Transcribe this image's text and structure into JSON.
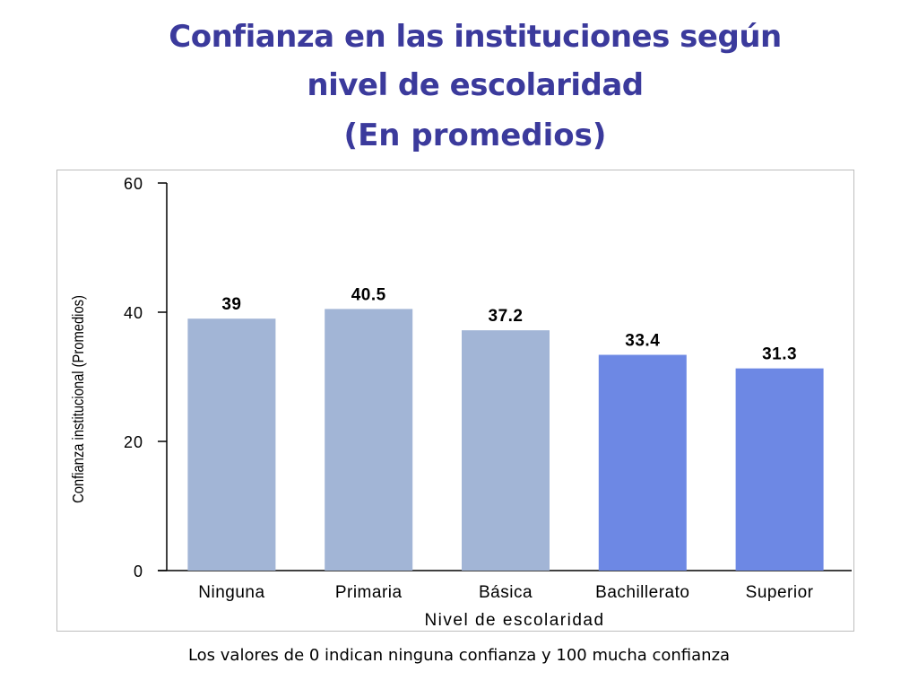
{
  "title": {
    "line1": "Confianza en las instituciones según",
    "line2": "nivel de escolaridad",
    "line3": "(En promedios)"
  },
  "footnote": "Los valores de 0 indican ninguna confianza y 100 mucha confianza",
  "colors": {
    "title": "#3b3a9c",
    "bar_light": "#a2b5d6",
    "bar_dark": "#6d88e4"
  },
  "chart_data": {
    "type": "bar",
    "xlabel": "Nivel de escolaridad",
    "ylabel": "Confianza institucional (Promedios)",
    "ylim": [
      0,
      60
    ],
    "yticks": [
      0,
      20,
      40,
      60
    ],
    "grid": false,
    "categories": [
      "Ninguna",
      "Primaria",
      "Básica",
      "Bachillerato",
      "Superior"
    ],
    "values": [
      39,
      40.5,
      37.2,
      33.4,
      31.3
    ],
    "data_labels": [
      "39",
      "40.5",
      "37.2",
      "33.4",
      "31.3"
    ],
    "bar_colors": [
      "#a2b5d6",
      "#a2b5d6",
      "#a2b5d6",
      "#6d88e4",
      "#6d88e4"
    ]
  }
}
